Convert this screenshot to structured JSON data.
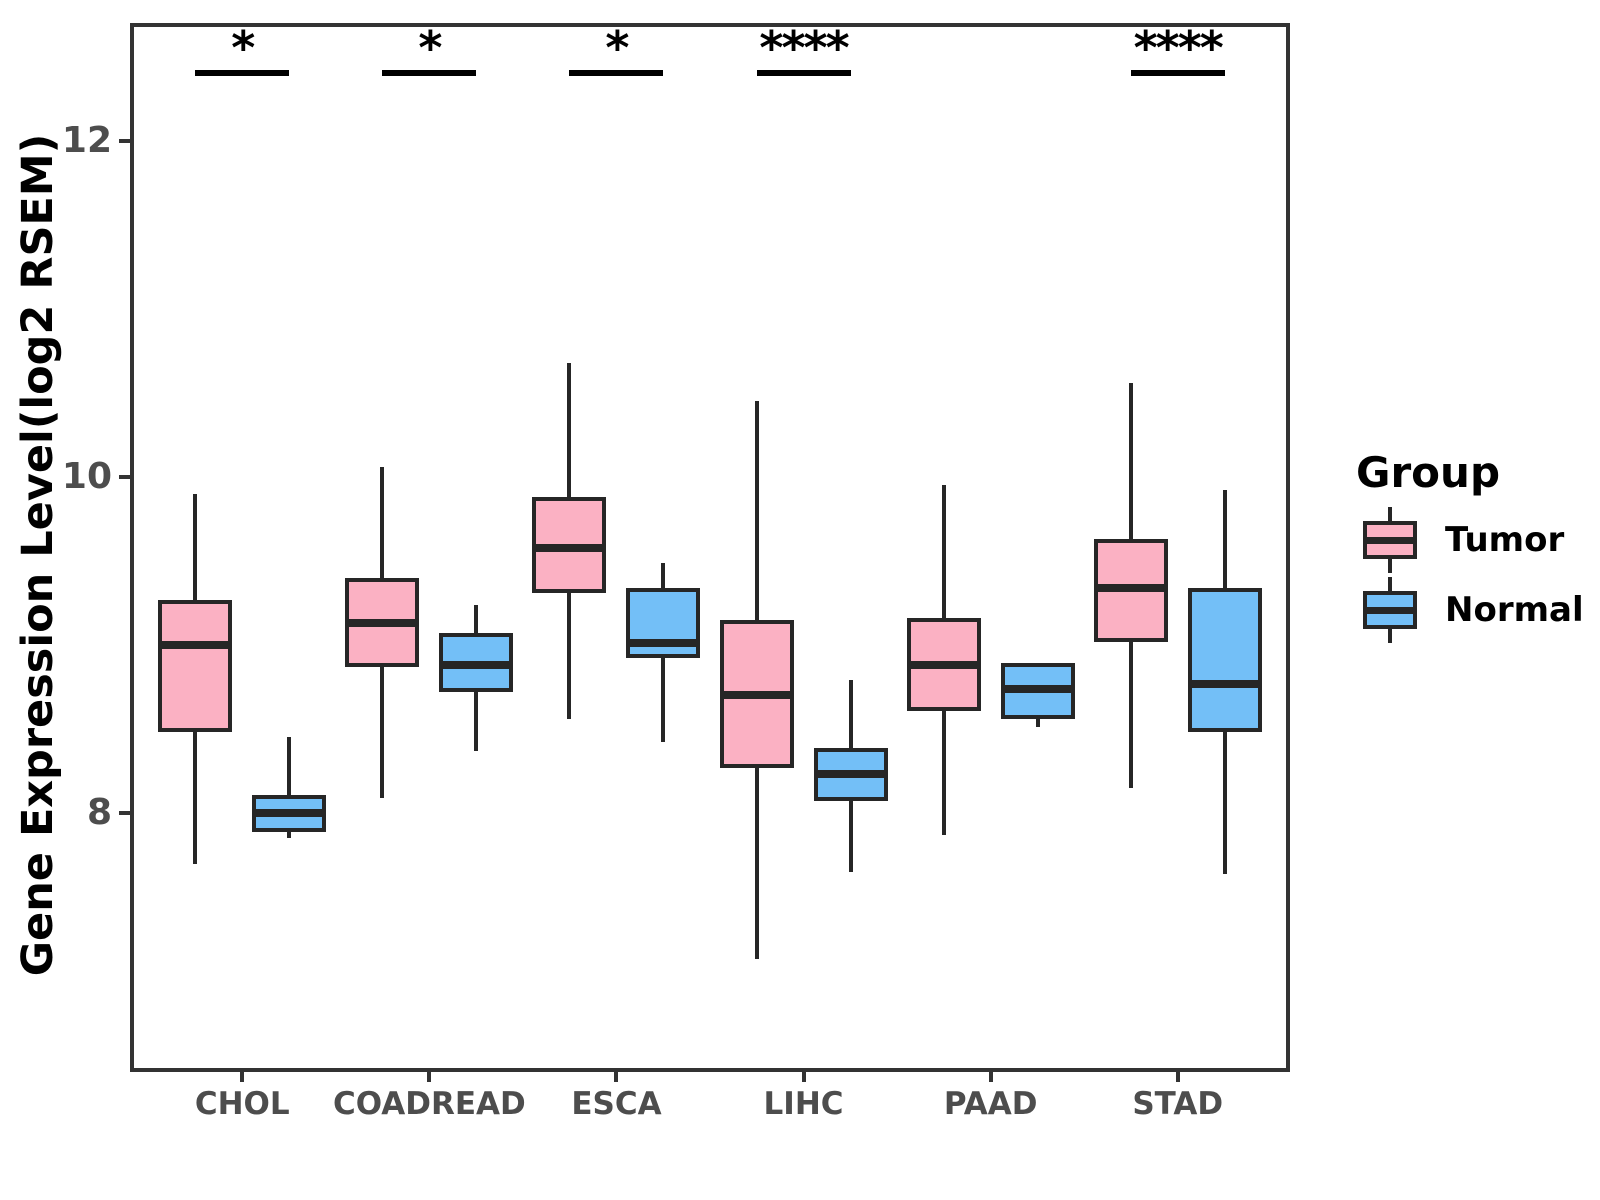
{
  "chart_data": {
    "type": "boxplot",
    "title": "",
    "xlabel": "",
    "ylabel": "Gene Expression Level(log2 RSEM)",
    "ylim": [
      6.46,
      12.7
    ],
    "yticks": [
      8,
      10,
      12
    ],
    "grid": false,
    "legend_position": "right",
    "categories": [
      "CHOL",
      "COADREAD",
      "ESCA",
      "LIHC",
      "PAAD",
      "STAD"
    ],
    "series": [
      {
        "name": "Tumor",
        "color": "#FBB1C3",
        "boxes": [
          {
            "low": 7.7,
            "q1": 8.48,
            "median": 9.0,
            "q3": 9.27,
            "high": 9.9
          },
          {
            "low": 8.09,
            "q1": 8.87,
            "median": 9.13,
            "q3": 9.4,
            "high": 10.06
          },
          {
            "low": 8.56,
            "q1": 9.31,
            "median": 9.58,
            "q3": 9.88,
            "high": 10.68
          },
          {
            "low": 7.13,
            "q1": 8.27,
            "median": 8.7,
            "q3": 9.15,
            "high": 10.45
          },
          {
            "low": 7.87,
            "q1": 8.61,
            "median": 8.88,
            "q3": 9.16,
            "high": 9.95
          },
          {
            "low": 8.15,
            "q1": 9.02,
            "median": 9.34,
            "q3": 9.63,
            "high": 10.56
          }
        ]
      },
      {
        "name": "Normal",
        "color": "#73BFF7",
        "boxes": [
          {
            "low": 7.85,
            "q1": 7.89,
            "median": 8.0,
            "q3": 8.11,
            "high": 8.45
          },
          {
            "low": 8.37,
            "q1": 8.72,
            "median": 8.88,
            "q3": 9.07,
            "high": 9.24
          },
          {
            "low": 8.42,
            "q1": 8.92,
            "median": 9.01,
            "q3": 9.34,
            "high": 9.49
          },
          {
            "low": 7.65,
            "q1": 8.07,
            "median": 8.23,
            "q3": 8.39,
            "high": 8.79
          },
          {
            "low": 8.51,
            "q1": 8.56,
            "median": 8.74,
            "q3": 8.89,
            "high": 8.89
          },
          {
            "low": 7.64,
            "q1": 8.48,
            "median": 8.77,
            "q3": 9.34,
            "high": 9.92
          }
        ]
      }
    ],
    "significance": [
      {
        "category": "CHOL",
        "label": "*"
      },
      {
        "category": "COADREAD",
        "label": "*"
      },
      {
        "category": "ESCA",
        "label": "*"
      },
      {
        "category": "LIHC",
        "label": "****"
      },
      {
        "category": "STAD",
        "label": "****"
      }
    ]
  },
  "legend": {
    "title": "Group",
    "items": [
      {
        "label": "Tumor"
      },
      {
        "label": "Normal"
      }
    ]
  }
}
